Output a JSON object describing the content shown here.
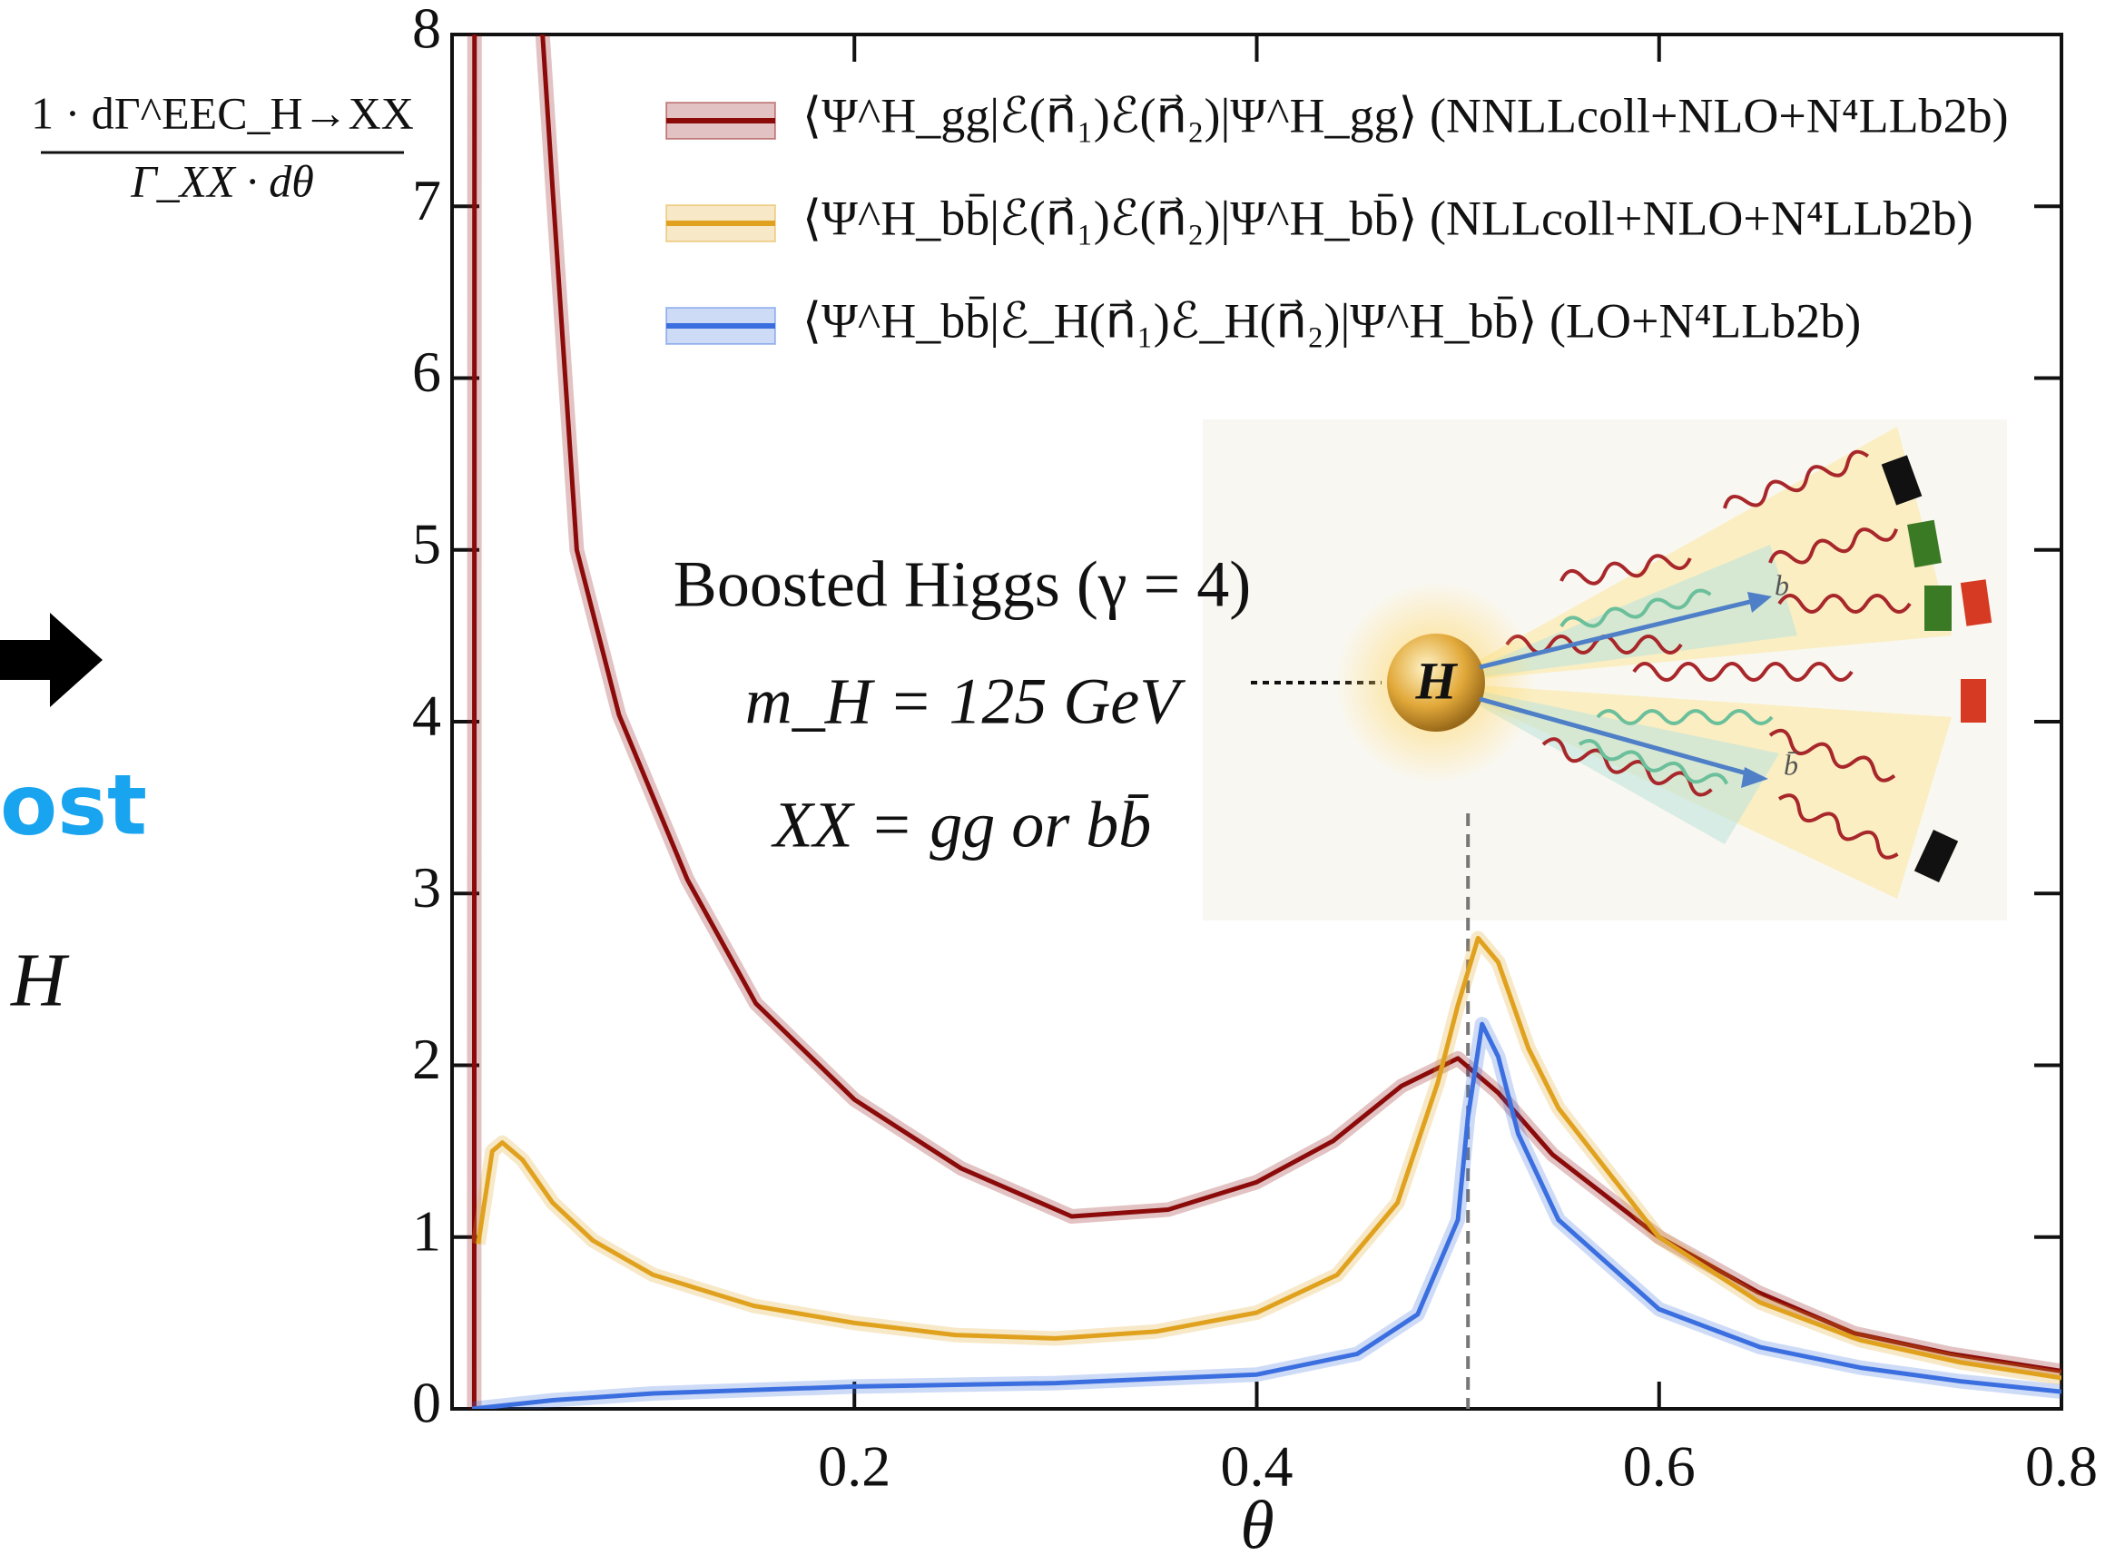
{
  "chart_data": {
    "type": "line",
    "xlabel": "θ",
    "ylabel_numerator": "1 · dΓ^EEC_H→XX",
    "ylabel_denominator": "Γ_XX · dθ",
    "xlim": [
      0,
      0.8
    ],
    "ylim": [
      0,
      8
    ],
    "xticks": [
      0.2,
      0.4,
      0.6,
      0.8
    ],
    "yticks": [
      0,
      1,
      2,
      3,
      4,
      5,
      6,
      7,
      8
    ],
    "reference_line_x": 0.505,
    "legend": "upper right",
    "series": [
      {
        "name": "⟨Ψ^H_gg|ℰ(n⃗₁)ℰ(n⃗₂)|Ψ^H_gg⟩ (NNLLcoll+NLO+N⁴LLb2b)",
        "color": "#8b0a0a",
        "x": [
          0.011,
          0.0112,
          null,
          0.043,
          0.045,
          0.05,
          0.062,
          0.083,
          0.117,
          0.151,
          0.2,
          0.253,
          0.308,
          0.356,
          0.4,
          0.438,
          0.472,
          0.5,
          0.52,
          0.547,
          0.6,
          0.649,
          0.697,
          0.745,
          0.8
        ],
        "values": [
          0,
          9,
          null,
          9,
          8,
          7.1,
          5.0,
          4.04,
          3.08,
          2.36,
          1.8,
          1.4,
          1.12,
          1.16,
          1.32,
          1.56,
          1.88,
          2.04,
          1.84,
          1.48,
          1.0,
          0.68,
          0.44,
          0.32,
          0.22
        ]
      },
      {
        "name": "⟨Ψ^H_bb̄|ℰ(n⃗₁)ℰ(n⃗₂)|Ψ^H_bb̄⟩ (NLLcoll+NLO+N⁴LLb2b)",
        "color": "#e0a21e",
        "x": [
          0.013,
          0.02,
          0.025,
          0.035,
          0.05,
          0.07,
          0.1,
          0.15,
          0.2,
          0.25,
          0.3,
          0.35,
          0.4,
          0.44,
          0.47,
          0.49,
          0.5,
          0.51,
          0.52,
          0.535,
          0.55,
          0.6,
          0.65,
          0.7,
          0.75,
          0.8
        ],
        "values": [
          0.96,
          1.5,
          1.55,
          1.45,
          1.2,
          0.98,
          0.78,
          0.6,
          0.5,
          0.43,
          0.41,
          0.45,
          0.56,
          0.78,
          1.2,
          1.9,
          2.35,
          2.74,
          2.6,
          2.1,
          1.75,
          1.0,
          0.62,
          0.4,
          0.27,
          0.18
        ]
      },
      {
        "name": "⟨Ψ^H_bb̄|ℰ_H(n⃗₁)ℰ_H(n⃗₂)|Ψ^H_bb̄⟩ (LO+N⁴LLb2b)",
        "color": "#3b6fe0",
        "x": [
          0.01,
          0.05,
          0.1,
          0.2,
          0.3,
          0.4,
          0.45,
          0.48,
          0.5,
          0.505,
          0.512,
          0.52,
          0.53,
          0.55,
          0.6,
          0.65,
          0.7,
          0.75,
          0.8
        ],
        "values": [
          0.0,
          0.05,
          0.09,
          0.13,
          0.15,
          0.2,
          0.32,
          0.55,
          1.1,
          1.7,
          2.24,
          2.05,
          1.6,
          1.1,
          0.58,
          0.36,
          0.24,
          0.16,
          0.1
        ]
      }
    ],
    "annotations": [
      "Boosted Higgs (γ = 4)",
      "m_H = 125 GeV",
      "XX = gg or bb̄"
    ],
    "inset_labels": [
      "H",
      "b",
      "b̄"
    ],
    "side_texts": [
      "ost",
      "H"
    ]
  }
}
